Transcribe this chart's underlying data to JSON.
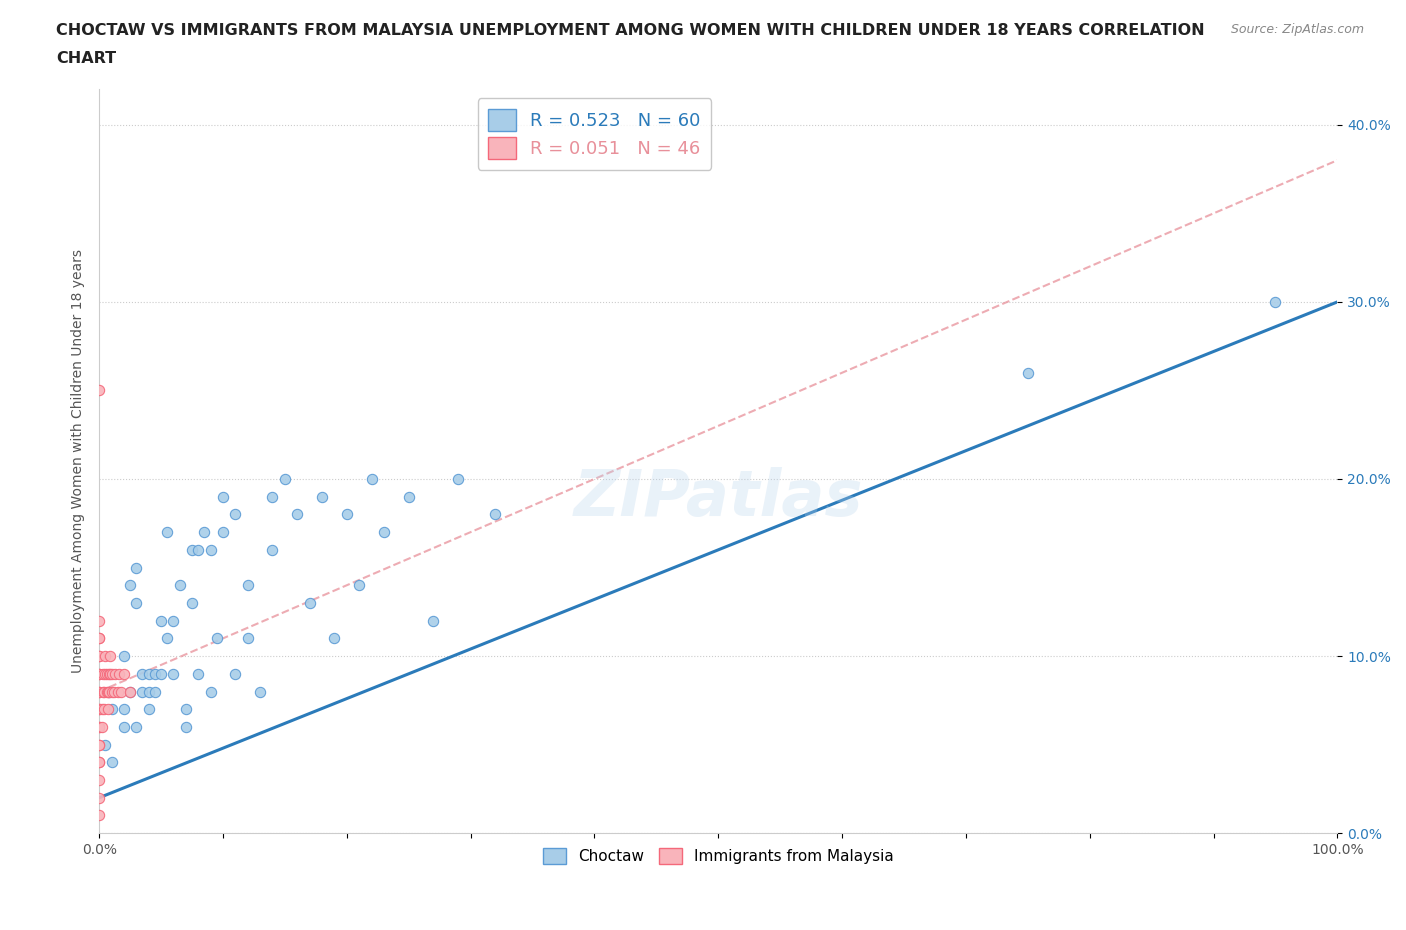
{
  "title_line1": "CHOCTAW VS IMMIGRANTS FROM MALAYSIA UNEMPLOYMENT AMONG WOMEN WITH CHILDREN UNDER 18 YEARS CORRELATION",
  "title_line2": "CHART",
  "source": "Source: ZipAtlas.com",
  "ylabel": "Unemployment Among Women with Children Under 18 years",
  "xmin": 0.0,
  "xmax": 1.0,
  "ymin": 0.0,
  "ymax": 0.42,
  "xticks": [
    0.0,
    1.0
  ],
  "xtick_labels": [
    "0.0%",
    "100.0%"
  ],
  "yticks": [
    0.0,
    0.1,
    0.2,
    0.3,
    0.4
  ],
  "ytick_labels": [
    "0.0%",
    "10.0%",
    "20.0%",
    "30.0%",
    "40.0%"
  ],
  "choctaw_R": 0.523,
  "choctaw_N": 60,
  "malaysia_R": 0.051,
  "malaysia_N": 46,
  "choctaw_color": "#a8cde8",
  "malaysia_color": "#f9b4bb",
  "choctaw_edge_color": "#5b9bd5",
  "malaysia_edge_color": "#f4687a",
  "choctaw_line_color": "#2b7bba",
  "malaysia_line_color": "#e8909a",
  "watermark": "ZIPatlas",
  "legend_label_1": "Choctaw",
  "legend_label_2": "Immigrants from Malaysia",
  "choctaw_x": [
    0.005,
    0.008,
    0.01,
    0.01,
    0.02,
    0.02,
    0.02,
    0.025,
    0.025,
    0.03,
    0.03,
    0.03,
    0.035,
    0.035,
    0.04,
    0.04,
    0.04,
    0.045,
    0.045,
    0.05,
    0.05,
    0.055,
    0.055,
    0.06,
    0.06,
    0.065,
    0.07,
    0.07,
    0.075,
    0.075,
    0.08,
    0.08,
    0.085,
    0.09,
    0.09,
    0.095,
    0.1,
    0.1,
    0.11,
    0.11,
    0.12,
    0.12,
    0.13,
    0.14,
    0.14,
    0.15,
    0.16,
    0.17,
    0.18,
    0.19,
    0.2,
    0.21,
    0.22,
    0.23,
    0.25,
    0.27,
    0.29,
    0.32,
    0.75,
    0.95
  ],
  "choctaw_y": [
    0.05,
    0.08,
    0.04,
    0.07,
    0.06,
    0.1,
    0.07,
    0.14,
    0.08,
    0.06,
    0.15,
    0.13,
    0.09,
    0.08,
    0.09,
    0.08,
    0.07,
    0.09,
    0.08,
    0.09,
    0.12,
    0.17,
    0.11,
    0.09,
    0.12,
    0.14,
    0.07,
    0.06,
    0.16,
    0.13,
    0.16,
    0.09,
    0.17,
    0.08,
    0.16,
    0.11,
    0.19,
    0.17,
    0.18,
    0.09,
    0.11,
    0.14,
    0.08,
    0.19,
    0.16,
    0.2,
    0.18,
    0.13,
    0.19,
    0.11,
    0.18,
    0.14,
    0.2,
    0.17,
    0.19,
    0.12,
    0.2,
    0.18,
    0.26,
    0.3
  ],
  "malaysia_x": [
    0.0,
    0.0,
    0.0,
    0.0,
    0.0,
    0.0,
    0.0,
    0.0,
    0.0,
    0.0,
    0.0,
    0.0,
    0.0,
    0.0,
    0.0,
    0.0,
    0.0,
    0.0,
    0.0,
    0.0,
    0.002,
    0.002,
    0.003,
    0.003,
    0.004,
    0.004,
    0.005,
    0.005,
    0.006,
    0.006,
    0.007,
    0.007,
    0.008,
    0.008,
    0.009,
    0.009,
    0.01,
    0.01,
    0.012,
    0.013,
    0.015,
    0.016,
    0.018,
    0.02,
    0.025,
    0.0
  ],
  "malaysia_y": [
    0.01,
    0.02,
    0.03,
    0.04,
    0.05,
    0.06,
    0.07,
    0.08,
    0.09,
    0.1,
    0.11,
    0.12,
    0.04,
    0.05,
    0.06,
    0.07,
    0.08,
    0.09,
    0.1,
    0.11,
    0.06,
    0.07,
    0.08,
    0.09,
    0.07,
    0.08,
    0.09,
    0.1,
    0.08,
    0.09,
    0.07,
    0.08,
    0.09,
    0.08,
    0.09,
    0.1,
    0.08,
    0.09,
    0.08,
    0.09,
    0.08,
    0.09,
    0.08,
    0.09,
    0.08,
    0.25
  ],
  "choctaw_line_x": [
    0.0,
    1.0
  ],
  "choctaw_line_y": [
    0.02,
    0.3
  ],
  "malaysia_line_x": [
    0.0,
    1.0
  ],
  "malaysia_line_y": [
    0.08,
    0.38
  ]
}
